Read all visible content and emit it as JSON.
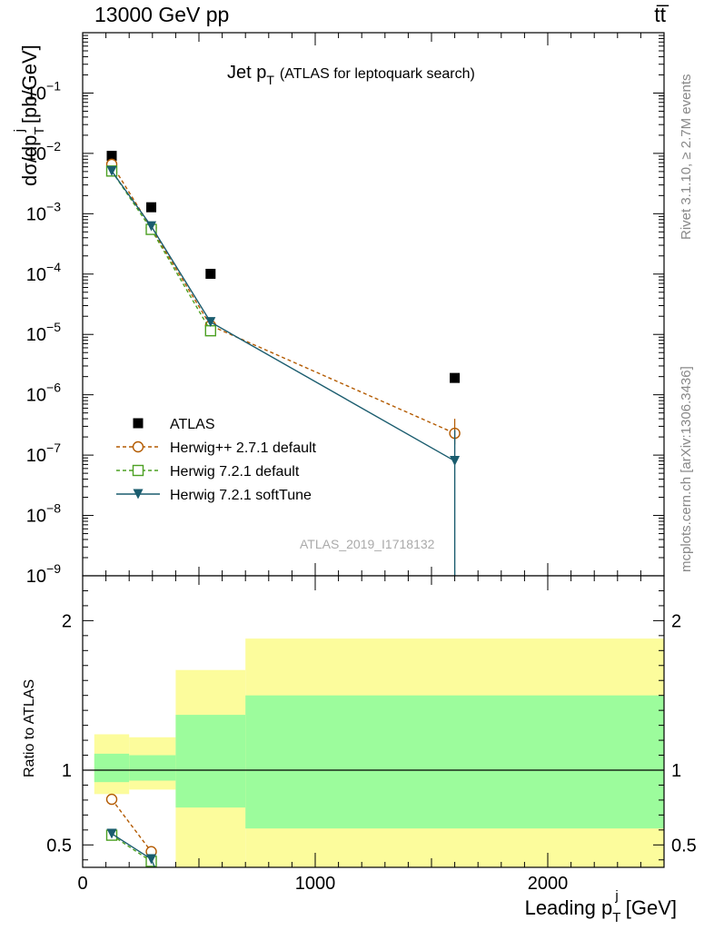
{
  "header": {
    "energy_label": "13000 GeV pp",
    "process_label": "tt̅",
    "rivet_label": "Rivet 3.1.10, ≥ 2.7M events",
    "site_label": "mcplots.cern.ch [arXiv:1306.3436]",
    "analysis_id": "ATLAS_2019_I1718132"
  },
  "chart_data": [
    {
      "type": "scatter",
      "title": "Jet p_T (ATLAS for leptoquark search)",
      "title_main": "Jet p",
      "title_sub": "T",
      "title_tail": "(ATLAS for leptoquark search)",
      "ylabel": "dσ/dp_T^j [pb/GeV]",
      "yscale": "log",
      "ylim": [
        1e-09,
        1
      ],
      "xlim": [
        0,
        2500
      ],
      "y_ticks": [
        {
          "value": 1e-09,
          "mantissa": "10",
          "exp": "−9"
        },
        {
          "value": 1e-08,
          "mantissa": "10",
          "exp": "−8"
        },
        {
          "value": 1e-07,
          "mantissa": "10",
          "exp": "−7"
        },
        {
          "value": 1e-06,
          "mantissa": "10",
          "exp": "−6"
        },
        {
          "value": 1e-05,
          "mantissa": "10",
          "exp": "−5"
        },
        {
          "value": 0.0001,
          "mantissa": "10",
          "exp": "−4"
        },
        {
          "value": 0.001,
          "mantissa": "10",
          "exp": "−3"
        },
        {
          "value": 0.01,
          "mantissa": "10",
          "exp": "−2"
        },
        {
          "value": 0.1,
          "mantissa": "10",
          "exp": "−1"
        }
      ],
      "series": [
        {
          "name": "ATLAS",
          "color": "#000000",
          "marker": "square-filled",
          "points": [
            {
              "x": 125,
              "y": 0.0091
            },
            {
              "x": 295,
              "y": 0.00128
            },
            {
              "x": 550,
              "y": 0.000101
            },
            {
              "x": 1600,
              "y": 1.9e-06
            }
          ]
        },
        {
          "name": "Herwig++ 2.7.1 default",
          "color": "#b35a00",
          "marker": "circle-open",
          "line": "dashed",
          "points": [
            {
              "x": 125,
              "y": 0.0066
            },
            {
              "x": 295,
              "y": 0.00058
            },
            {
              "x": 550,
              "y": 1.4e-05
            },
            {
              "x": 1600,
              "y": 2.3e-07
            }
          ]
        },
        {
          "name": "Herwig 7.2.1 default",
          "color": "#4ca022",
          "marker": "square-open",
          "line": "dashed",
          "points": [
            {
              "x": 125,
              "y": 0.0051
            },
            {
              "x": 295,
              "y": 0.00055
            },
            {
              "x": 550,
              "y": 1.15e-05
            }
          ]
        },
        {
          "name": "Herwig 7.2.1 softTune",
          "color": "#1a5c6e",
          "marker": "triangle-down-filled",
          "line": "solid",
          "points": [
            {
              "x": 125,
              "y": 0.0051
            },
            {
              "x": 295,
              "y": 0.00062
            },
            {
              "x": 550,
              "y": 1.6e-05
            },
            {
              "x": 1600,
              "y": 8e-08
            }
          ]
        }
      ]
    },
    {
      "type": "scatter",
      "ylabel": "Ratio to ATLAS",
      "xlabel": "Leading p_T^j [GeV]",
      "xlim": [
        0,
        2500
      ],
      "ylim": [
        0.35,
        2.3
      ],
      "x_ticks": [
        0,
        1000,
        2000
      ],
      "y_ticks": [
        0.5,
        1,
        2
      ],
      "reference_line": 1,
      "bins": [
        {
          "x_low": 50,
          "x_high": 200,
          "inner": [
            0.92,
            1.11
          ],
          "outer": [
            0.84,
            1.24
          ]
        },
        {
          "x_low": 200,
          "x_high": 400,
          "inner": [
            0.93,
            1.1
          ],
          "outer": [
            0.87,
            1.22
          ]
        },
        {
          "x_low": 400,
          "x_high": 700,
          "inner": [
            0.75,
            1.37
          ],
          "outer": [
            0.35,
            1.67
          ]
        },
        {
          "x_low": 700,
          "x_high": 2500,
          "inner": [
            0.61,
            1.5
          ],
          "outer": [
            0.35,
            1.88
          ]
        }
      ],
      "band_colors": {
        "inner": "#9cfc9c",
        "outer": "#fcfc9c"
      },
      "series": [
        {
          "name": "Herwig++ 2.7.1 default",
          "color": "#b35a00",
          "marker": "circle-open",
          "line": "dashed",
          "points": [
            {
              "x": 125,
              "y": 0.805
            },
            {
              "x": 295,
              "y": 0.455
            }
          ]
        },
        {
          "name": "Herwig 7.2.1 default",
          "color": "#4ca022",
          "marker": "square-open",
          "line": "dashed",
          "points": [
            {
              "x": 125,
              "y": 0.565
            },
            {
              "x": 295,
              "y": 0.39
            }
          ]
        },
        {
          "name": "Herwig 7.2.1 softTune",
          "color": "#1a5c6e",
          "marker": "triangle-down-filled",
          "line": "solid",
          "points": [
            {
              "x": 125,
              "y": 0.575
            },
            {
              "x": 295,
              "y": 0.405
            }
          ]
        }
      ]
    }
  ],
  "axis_text": {
    "ylabel_main": "dσ/dp",
    "ylabel_sub": "T",
    "ylabel_sup": "j",
    "ylabel_unit": "[pb/GeV]",
    "ratio_label": "Ratio to ATLAS",
    "xlabel_main": "Leading p",
    "xlabel_sub": "T",
    "xlabel_sup": "j",
    "xlabel_unit": "[GeV]"
  }
}
